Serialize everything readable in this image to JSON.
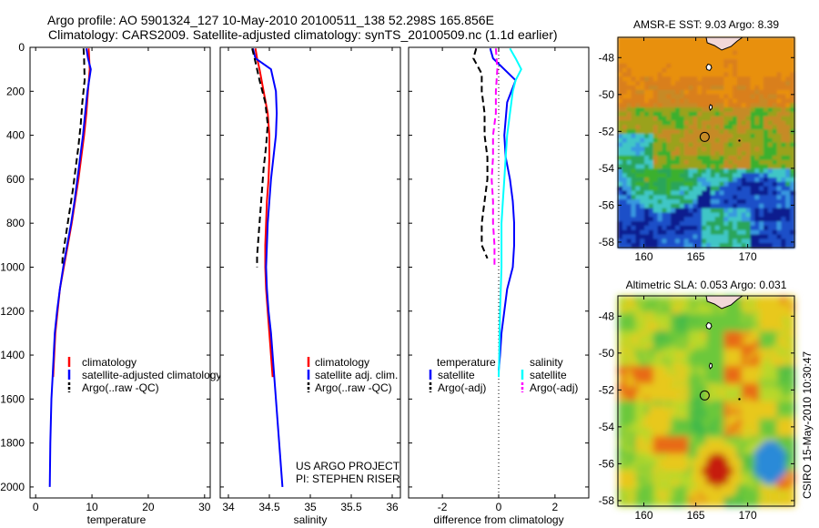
{
  "title_line1": "Argo profile: AO 5901324_127 10-May-2010 20100511_138 52.298S 165.856E",
  "title_line2": "Climatology: CARS2009. Satellite-adjusted climatology: synTS_20100509.nc (1.1d earlier)",
  "side_label": "CSIRO 15-May-2010 10:30:47",
  "colors": {
    "climatology": "#ff0000",
    "satellite": "#0000ff",
    "argo": "#000000",
    "satellite_sal": "#00ffff",
    "argo_sal": "#ff00ff"
  },
  "chart_data": [
    {
      "type": "line",
      "xlabel": "temperature",
      "ylabel": "",
      "xlim": [
        -1,
        31
      ],
      "ylim": [
        2050,
        0
      ],
      "xticks": [
        "0",
        "10",
        "20",
        "30"
      ],
      "yticks": [
        "0",
        "200",
        "400",
        "600",
        "800",
        "1000",
        "1200",
        "1400",
        "1600",
        "1800",
        "2000"
      ],
      "legend": [
        "climatology",
        "satellite-adjusted climatology",
        "Argo(..raw -QC)"
      ],
      "series": [
        {
          "name": "climatology",
          "color": "#ff0000",
          "width": 2,
          "dash": "",
          "points": [
            [
              9.4,
              5
            ],
            [
              9.5,
              50
            ],
            [
              9.6,
              100
            ],
            [
              9.3,
              200
            ],
            [
              9.0,
              300
            ],
            [
              8.6,
              400
            ],
            [
              8.1,
              500
            ],
            [
              7.6,
              600
            ],
            [
              7.0,
              700
            ],
            [
              6.4,
              800
            ],
            [
              5.7,
              900
            ],
            [
              5.0,
              1000
            ],
            [
              4.3,
              1100
            ],
            [
              3.9,
              1200
            ],
            [
              3.5,
              1300
            ],
            [
              3.3,
              1400
            ],
            [
              3.1,
              1500
            ]
          ]
        },
        {
          "name": "satellite-adjusted climatology",
          "color": "#0000ff",
          "width": 2,
          "dash": "",
          "points": [
            [
              9.0,
              5
            ],
            [
              9.3,
              50
            ],
            [
              9.8,
              100
            ],
            [
              9.2,
              200
            ],
            [
              8.8,
              300
            ],
            [
              8.4,
              400
            ],
            [
              7.9,
              500
            ],
            [
              7.4,
              600
            ],
            [
              6.9,
              700
            ],
            [
              6.3,
              800
            ],
            [
              5.6,
              900
            ],
            [
              4.9,
              1000
            ],
            [
              4.3,
              1100
            ],
            [
              3.8,
              1200
            ],
            [
              3.4,
              1300
            ],
            [
              3.2,
              1400
            ],
            [
              3.0,
              1500
            ],
            [
              2.8,
              1600
            ],
            [
              2.7,
              1700
            ],
            [
              2.6,
              1800
            ],
            [
              2.55,
              1900
            ],
            [
              2.5,
              2000
            ]
          ]
        },
        {
          "name": "Argo(..raw -QC)",
          "color": "#000000",
          "width": 2,
          "dash": "7,4",
          "points": [
            [
              8.5,
              5
            ],
            [
              8.6,
              50
            ],
            [
              8.7,
              150
            ],
            [
              8.3,
              250
            ],
            [
              8.0,
              350
            ],
            [
              7.6,
              450
            ],
            [
              7.1,
              550
            ],
            [
              6.6,
              650
            ],
            [
              6.0,
              750
            ],
            [
              5.4,
              850
            ],
            [
              4.8,
              950
            ],
            [
              4.7,
              1000
            ]
          ]
        }
      ]
    },
    {
      "type": "line",
      "xlabel": "salinity",
      "ylabel": "",
      "xlim": [
        33.9,
        36.1
      ],
      "ylim": [
        2050,
        0
      ],
      "xticks": [
        "34",
        "34.5",
        "35",
        "35.5",
        "36"
      ],
      "annotation": [
        "US ARGO PROJECT",
        "PI: STEPHEN RISER"
      ],
      "legend": [
        "climatology",
        "satellite adj. clim.",
        "Argo(..raw -QC)"
      ],
      "series": [
        {
          "name": "climatology",
          "color": "#ff0000",
          "width": 2,
          "dash": "",
          "points": [
            [
              34.33,
              5
            ],
            [
              34.35,
              50
            ],
            [
              34.38,
              100
            ],
            [
              34.43,
              200
            ],
            [
              34.48,
              300
            ],
            [
              34.5,
              400
            ],
            [
              34.5,
              500
            ],
            [
              34.49,
              600
            ],
            [
              34.47,
              700
            ],
            [
              34.46,
              800
            ],
            [
              34.45,
              900
            ],
            [
              34.45,
              1000
            ],
            [
              34.46,
              1100
            ],
            [
              34.48,
              1200
            ],
            [
              34.5,
              1300
            ],
            [
              34.52,
              1400
            ],
            [
              34.54,
              1500
            ]
          ]
        },
        {
          "name": "satellite adj. clim.",
          "color": "#0000ff",
          "width": 2,
          "dash": "",
          "points": [
            [
              34.3,
              5
            ],
            [
              34.33,
              50
            ],
            [
              34.52,
              100
            ],
            [
              34.58,
              200
            ],
            [
              34.59,
              300
            ],
            [
              34.58,
              400
            ],
            [
              34.55,
              500
            ],
            [
              34.52,
              600
            ],
            [
              34.5,
              700
            ],
            [
              34.48,
              800
            ],
            [
              34.47,
              900
            ],
            [
              34.46,
              1000
            ],
            [
              34.47,
              1100
            ],
            [
              34.49,
              1200
            ],
            [
              34.52,
              1300
            ],
            [
              34.54,
              1400
            ],
            [
              34.56,
              1500
            ],
            [
              34.58,
              1600
            ],
            [
              34.6,
              1700
            ],
            [
              34.62,
              1800
            ],
            [
              34.64,
              1900
            ],
            [
              34.66,
              2000
            ]
          ]
        },
        {
          "name": "Argo(..raw -QC)",
          "color": "#000000",
          "width": 2,
          "dash": "7,4",
          "points": [
            [
              34.29,
              5
            ],
            [
              34.32,
              50
            ],
            [
              34.38,
              150
            ],
            [
              34.45,
              250
            ],
            [
              34.48,
              350
            ],
            [
              34.46,
              450
            ],
            [
              34.43,
              550
            ],
            [
              34.41,
              650
            ],
            [
              34.39,
              750
            ],
            [
              34.37,
              850
            ],
            [
              34.35,
              950
            ],
            [
              34.35,
              1000
            ]
          ]
        }
      ]
    },
    {
      "type": "line",
      "xlabel": "difference from climatology",
      "ylabel": "",
      "xlim": [
        -3.2,
        3.2
      ],
      "ylim": [
        2050,
        0
      ],
      "xticks": [
        "-2",
        "0",
        "2"
      ],
      "legend_temperature_title": "temperature",
      "legend_salinity_title": "salinity",
      "legend": [
        "satellite",
        "Argo(-adj)",
        "satellite",
        "Argo(-adj)"
      ],
      "series": [
        {
          "name": "temperature satellite",
          "color": "#0000ff",
          "width": 2,
          "dash": "",
          "points": [
            [
              -0.3,
              5
            ],
            [
              -0.2,
              50
            ],
            [
              0.6,
              150
            ],
            [
              0.3,
              250
            ],
            [
              0.2,
              400
            ],
            [
              0.25,
              500
            ],
            [
              0.4,
              600
            ],
            [
              0.5,
              700
            ],
            [
              0.55,
              800
            ],
            [
              0.55,
              900
            ],
            [
              0.5,
              1000
            ],
            [
              0.3,
              1100
            ],
            [
              0.2,
              1200
            ],
            [
              0.1,
              1300
            ],
            [
              0.05,
              1400
            ],
            [
              0.0,
              1470
            ]
          ]
        },
        {
          "name": "temperature Argo(-adj)",
          "color": "#000000",
          "width": 2,
          "dash": "7,4",
          "points": [
            [
              -0.8,
              5
            ],
            [
              -0.9,
              50
            ],
            [
              -0.6,
              120
            ],
            [
              -0.6,
              200
            ],
            [
              -0.5,
              300
            ],
            [
              -0.5,
              400
            ],
            [
              -0.4,
              500
            ],
            [
              -0.4,
              600
            ],
            [
              -0.5,
              700
            ],
            [
              -0.6,
              800
            ],
            [
              -0.6,
              900
            ],
            [
              -0.4,
              960
            ]
          ]
        },
        {
          "name": "salinity satellite",
          "color": "#00ffff",
          "width": 2,
          "dash": "",
          "points": [
            [
              0.4,
              5
            ],
            [
              0.6,
              50
            ],
            [
              0.8,
              100
            ],
            [
              0.6,
              150
            ],
            [
              0.5,
              200
            ],
            [
              0.4,
              300
            ],
            [
              0.3,
              400
            ],
            [
              0.25,
              500
            ],
            [
              0.2,
              600
            ],
            [
              0.15,
              700
            ],
            [
              0.1,
              800
            ],
            [
              0.1,
              1000
            ],
            [
              0.05,
              1200
            ],
            [
              0.02,
              1400
            ],
            [
              0.0,
              1500
            ]
          ]
        },
        {
          "name": "salinity Argo(-adj)",
          "color": "#ff00ff",
          "width": 2,
          "dash": "7,4",
          "points": [
            [
              -0.1,
              5
            ],
            [
              -0.05,
              100
            ],
            [
              -0.1,
              200
            ],
            [
              -0.1,
              300
            ],
            [
              -0.2,
              400
            ],
            [
              -0.2,
              500
            ],
            [
              -0.25,
              600
            ],
            [
              -0.2,
              700
            ],
            [
              -0.2,
              800
            ],
            [
              -0.15,
              900
            ],
            [
              -0.15,
              1000
            ]
          ]
        }
      ]
    },
    {
      "type": "heatmap",
      "title": "AMSR-E SST: 9.03  Argo: 8.39",
      "xticks": [
        "160",
        "165",
        "170"
      ],
      "yticks": [
        "-48",
        "-50",
        "-52",
        "-54",
        "-56",
        "-58"
      ],
      "xlim": [
        157.5,
        174.5
      ],
      "ylim": [
        -58.3,
        -46.9
      ],
      "marker": [
        165.856,
        -52.298
      ]
    },
    {
      "type": "heatmap",
      "title": "Altimetric SLA: 0.053  Argo: 0.031",
      "xticks": [
        "160",
        "165",
        "170"
      ],
      "yticks": [
        "-48",
        "-50",
        "-52",
        "-54",
        "-56",
        "-58"
      ],
      "xlim": [
        157.5,
        174.5
      ],
      "ylim": [
        -58.3,
        -46.9
      ],
      "marker": [
        165.856,
        -52.298
      ]
    }
  ]
}
